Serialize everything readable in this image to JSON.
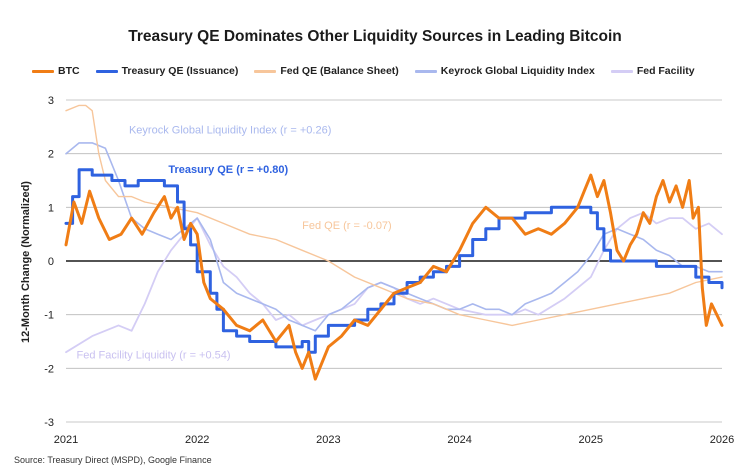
{
  "chart_data": {
    "type": "line",
    "title": "Treasury QE Dominates Other Liquidity Sources in Leading Bitcoin",
    "ylabel": "12-Month Change (Normalized)",
    "xlabel": "",
    "ylim": [
      -3,
      3
    ],
    "xlim": [
      2021,
      2026
    ],
    "yticks": [
      "3",
      "2",
      "1",
      "0",
      "-1",
      "-2",
      "-3"
    ],
    "yticks_values": [
      3,
      2,
      1,
      0,
      -1,
      -2,
      -3
    ],
    "xticks": [
      "2021",
      "2022",
      "2023",
      "2024",
      "2025",
      "2026"
    ],
    "xticks_values": [
      2021,
      2022,
      2023,
      2024,
      2025,
      2026
    ],
    "grid": "horizontal",
    "legend_position": "top",
    "source": "Source: Treasury Direct (MSPD), Google Finance",
    "series": [
      {
        "name": "BTC",
        "color": "#f07d15",
        "width": 3,
        "opacity": 1,
        "x": [
          2021.0,
          2021.06,
          2021.12,
          2021.18,
          2021.25,
          2021.33,
          2021.42,
          2021.5,
          2021.58,
          2021.67,
          2021.75,
          2021.8,
          2021.85,
          2021.9,
          2021.95,
          2022.0,
          2022.05,
          2022.1,
          2022.2,
          2022.3,
          2022.4,
          2022.5,
          2022.6,
          2022.7,
          2022.75,
          2022.8,
          2022.85,
          2022.9,
          2023.0,
          2023.1,
          2023.2,
          2023.3,
          2023.4,
          2023.5,
          2023.6,
          2023.7,
          2023.8,
          2023.9,
          2024.0,
          2024.1,
          2024.2,
          2024.3,
          2024.4,
          2024.5,
          2024.6,
          2024.7,
          2024.8,
          2024.9,
          2024.95,
          2025.0,
          2025.05,
          2025.1,
          2025.15,
          2025.2,
          2025.25,
          2025.3,
          2025.35,
          2025.4,
          2025.45,
          2025.5,
          2025.55,
          2025.6,
          2025.65,
          2025.7,
          2025.75,
          2025.78,
          2025.82,
          2025.85,
          2025.88,
          2025.92,
          2025.96,
          2026.0
        ],
        "y": [
          0.3,
          1.1,
          0.7,
          1.3,
          0.8,
          0.4,
          0.5,
          0.8,
          0.5,
          0.9,
          1.2,
          0.8,
          1.0,
          0.4,
          0.7,
          0.5,
          -0.4,
          -0.7,
          -0.9,
          -1.2,
          -1.3,
          -1.1,
          -1.5,
          -1.2,
          -1.7,
          -2.0,
          -1.7,
          -2.2,
          -1.6,
          -1.4,
          -1.1,
          -1.2,
          -0.9,
          -0.6,
          -0.5,
          -0.4,
          -0.1,
          -0.2,
          0.2,
          0.7,
          1.0,
          0.8,
          0.8,
          0.5,
          0.6,
          0.5,
          0.7,
          1.0,
          1.3,
          1.6,
          1.2,
          1.5,
          0.9,
          0.2,
          0.0,
          0.3,
          0.5,
          0.9,
          0.7,
          1.2,
          1.5,
          1.1,
          1.4,
          1.0,
          1.5,
          0.8,
          1.0,
          -0.5,
          -1.2,
          -0.8,
          -1.0,
          -1.2
        ]
      },
      {
        "name": "Treasury QE (Issuance)",
        "color": "#2f62e0",
        "width": 3,
        "opacity": 1,
        "step": true,
        "x": [
          2021.0,
          2021.05,
          2021.1,
          2021.15,
          2021.2,
          2021.35,
          2021.45,
          2021.55,
          2021.65,
          2021.75,
          2021.85,
          2021.9,
          2021.95,
          2022.0,
          2022.1,
          2022.15,
          2022.2,
          2022.3,
          2022.4,
          2022.5,
          2022.6,
          2022.7,
          2022.8,
          2022.85,
          2022.9,
          2023.0,
          2023.1,
          2023.2,
          2023.3,
          2023.4,
          2023.5,
          2023.6,
          2023.7,
          2023.8,
          2023.9,
          2024.0,
          2024.1,
          2024.2,
          2024.3,
          2024.4,
          2024.5,
          2024.6,
          2024.7,
          2024.8,
          2024.9,
          2025.0,
          2025.05,
          2025.1,
          2025.15,
          2025.2,
          2025.3,
          2025.4,
          2025.5,
          2025.6,
          2025.7,
          2025.8,
          2025.9,
          2026.0
        ],
        "y": [
          0.7,
          1.2,
          1.7,
          1.7,
          1.6,
          1.5,
          1.4,
          1.5,
          1.5,
          1.4,
          1.1,
          0.6,
          0.3,
          -0.2,
          -0.6,
          -0.9,
          -1.3,
          -1.4,
          -1.5,
          -1.5,
          -1.6,
          -1.6,
          -1.5,
          -1.7,
          -1.4,
          -1.2,
          -1.2,
          -1.1,
          -0.9,
          -0.8,
          -0.6,
          -0.4,
          -0.3,
          -0.2,
          -0.1,
          0.1,
          0.4,
          0.6,
          0.8,
          0.8,
          0.9,
          0.9,
          1.0,
          1.0,
          1.0,
          0.9,
          0.6,
          0.2,
          0.0,
          0.0,
          0.0,
          0.0,
          -0.1,
          -0.1,
          -0.1,
          -0.3,
          -0.4,
          -0.5
        ]
      },
      {
        "name": "Fed QE (Balance Sheet)",
        "color": "#f7c69b",
        "width": 1.4,
        "opacity": 1,
        "x": [
          2021.0,
          2021.1,
          2021.15,
          2021.2,
          2021.25,
          2021.3,
          2021.4,
          2021.5,
          2021.6,
          2021.8,
          2022.0,
          2022.2,
          2022.4,
          2022.6,
          2022.8,
          2023.0,
          2023.2,
          2023.4,
          2023.6,
          2023.8,
          2024.0,
          2024.2,
          2024.4,
          2024.6,
          2024.8,
          2025.0,
          2025.2,
          2025.4,
          2025.6,
          2025.8,
          2026.0
        ],
        "y": [
          2.8,
          2.9,
          2.9,
          2.8,
          2.0,
          1.5,
          1.2,
          1.2,
          1.1,
          1.0,
          0.9,
          0.7,
          0.5,
          0.4,
          0.2,
          0.0,
          -0.3,
          -0.5,
          -0.7,
          -0.8,
          -1.0,
          -1.1,
          -1.2,
          -1.1,
          -1.0,
          -0.9,
          -0.8,
          -0.7,
          -0.6,
          -0.4,
          -0.3
        ]
      },
      {
        "name": "Keyrock Global Liquidity Index",
        "color": "#a9b8ee",
        "width": 1.6,
        "opacity": 1,
        "x": [
          2021.0,
          2021.1,
          2021.2,
          2021.3,
          2021.4,
          2021.5,
          2021.6,
          2021.7,
          2021.8,
          2021.9,
          2022.0,
          2022.1,
          2022.2,
          2022.3,
          2022.4,
          2022.5,
          2022.6,
          2022.7,
          2022.8,
          2022.9,
          2023.0,
          2023.1,
          2023.2,
          2023.3,
          2023.4,
          2023.5,
          2023.6,
          2023.7,
          2023.8,
          2023.9,
          2024.0,
          2024.1,
          2024.2,
          2024.3,
          2024.4,
          2024.5,
          2024.6,
          2024.7,
          2024.8,
          2024.9,
          2025.0,
          2025.1,
          2025.2,
          2025.3,
          2025.4,
          2025.5,
          2025.6,
          2025.7,
          2025.8,
          2025.9,
          2026.0
        ],
        "y": [
          2.0,
          2.2,
          2.2,
          2.1,
          1.5,
          0.8,
          0.6,
          0.5,
          0.4,
          0.6,
          0.8,
          0.4,
          -0.4,
          -0.6,
          -0.7,
          -0.8,
          -0.9,
          -1.1,
          -1.2,
          -1.3,
          -1.0,
          -0.9,
          -0.7,
          -0.5,
          -0.4,
          -0.5,
          -0.6,
          -0.7,
          -0.8,
          -0.9,
          -0.9,
          -0.8,
          -0.9,
          -0.9,
          -1.0,
          -0.8,
          -0.7,
          -0.6,
          -0.4,
          -0.2,
          0.1,
          0.5,
          0.6,
          0.5,
          0.4,
          0.2,
          0.1,
          -0.1,
          -0.1,
          -0.2,
          -0.2
        ]
      },
      {
        "name": "Fed Facility",
        "color": "#d4cdf5",
        "width": 1.8,
        "opacity": 1,
        "x": [
          2021.0,
          2021.2,
          2021.4,
          2021.5,
          2021.6,
          2021.7,
          2021.8,
          2021.9,
          2022.0,
          2022.1,
          2022.2,
          2022.3,
          2022.4,
          2022.5,
          2022.6,
          2022.7,
          2022.8,
          2022.9,
          2023.0,
          2023.1,
          2023.2,
          2023.3,
          2023.4,
          2023.5,
          2023.6,
          2023.7,
          2023.8,
          2023.9,
          2024.0,
          2024.2,
          2024.4,
          2024.5,
          2024.6,
          2024.8,
          2025.0,
          2025.1,
          2025.2,
          2025.3,
          2025.4,
          2025.5,
          2025.6,
          2025.7,
          2025.8,
          2025.9,
          2026.0
        ],
        "y": [
          -1.7,
          -1.4,
          -1.2,
          -1.3,
          -0.8,
          -0.2,
          0.2,
          0.5,
          0.8,
          0.3,
          -0.1,
          -0.3,
          -0.6,
          -0.8,
          -1.1,
          -1.0,
          -1.2,
          -1.1,
          -1.0,
          -0.9,
          -0.8,
          -0.5,
          -0.4,
          -0.5,
          -0.7,
          -0.8,
          -0.7,
          -0.8,
          -0.9,
          -1.0,
          -1.0,
          -0.9,
          -1.0,
          -0.7,
          -0.3,
          0.2,
          0.6,
          0.8,
          0.9,
          0.7,
          0.8,
          0.8,
          0.6,
          0.7,
          0.5
        ]
      }
    ],
    "annotations": [
      {
        "text": "Keyrock Global Liquidity Index (r = +0.26)",
        "x": 2021.48,
        "y": 2.38,
        "color": "#a9b8ee",
        "bold": false
      },
      {
        "text": "Treasury QE (r = +0.80)",
        "x": 2021.78,
        "y": 1.64,
        "color": "#2f62e0",
        "bold": true
      },
      {
        "text": "Fed QE (r = -0.07)",
        "x": 2022.8,
        "y": 0.6,
        "color": "#f7c69b",
        "bold": false
      },
      {
        "text": "Fed Facility Liquidity (r = +0.54)",
        "x": 2021.08,
        "y": -1.82,
        "color": "#c9c1f0",
        "bold": false
      }
    ]
  },
  "legend": [
    {
      "label": "BTC",
      "color": "#f07d15"
    },
    {
      "label": "Treasury QE (Issuance)",
      "color": "#2f62e0"
    },
    {
      "label": "Fed QE (Balance Sheet)",
      "color": "#f7c69b"
    },
    {
      "label": "Keyrock Global Liquidity Index",
      "color": "#a9b8ee"
    },
    {
      "label": "Fed Facility",
      "color": "#d4cdf5"
    }
  ]
}
